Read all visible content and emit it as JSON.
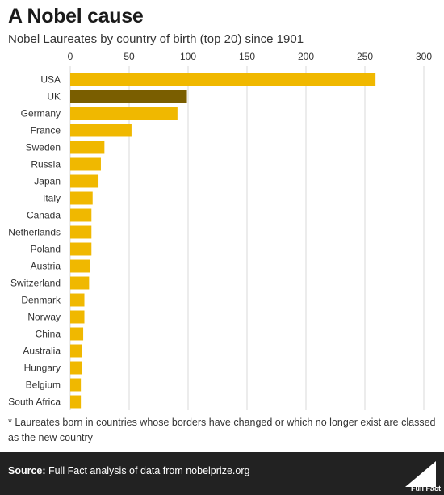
{
  "header": {
    "title": "A Nobel cause",
    "subtitle": "Nobel Laureates by country of birth (top 20) since 1901"
  },
  "chart_data": {
    "type": "bar",
    "orientation": "horizontal",
    "title": "A Nobel cause",
    "subtitle": "Nobel Laureates by country of birth (top 20) since 1901",
    "xlim": [
      0,
      300
    ],
    "xticks": [
      0,
      50,
      100,
      150,
      200,
      250,
      300
    ],
    "grid": true,
    "categories": [
      "USA",
      "UK",
      "Germany",
      "France",
      "Sweden",
      "Russia",
      "Japan",
      "Italy",
      "Canada",
      "Netherlands",
      "Poland",
      "Austria",
      "Switzerland",
      "Denmark",
      "Norway",
      "China",
      "Australia",
      "Hungary",
      "Belgium",
      "South Africa"
    ],
    "values": [
      259,
      99,
      91,
      52,
      29,
      26,
      24,
      19,
      18,
      18,
      18,
      17,
      16,
      12,
      12,
      11,
      10,
      10,
      9,
      9
    ],
    "highlight_category": "UK"
  },
  "colors": {
    "bar": "#f0b800",
    "highlight": "#7a5e00",
    "grid": "#d9d9d9",
    "footer_bg": "#222222"
  },
  "note": "* Laureates born in countries whose borders have changed or which no longer exist are classed as the new country",
  "footer": {
    "source_label": "Source:",
    "source_text": " Full Fact analysis of data from nobelprize.org",
    "logo_text": "Full Fact",
    "logo_icon": "full-fact-logo-icon"
  }
}
